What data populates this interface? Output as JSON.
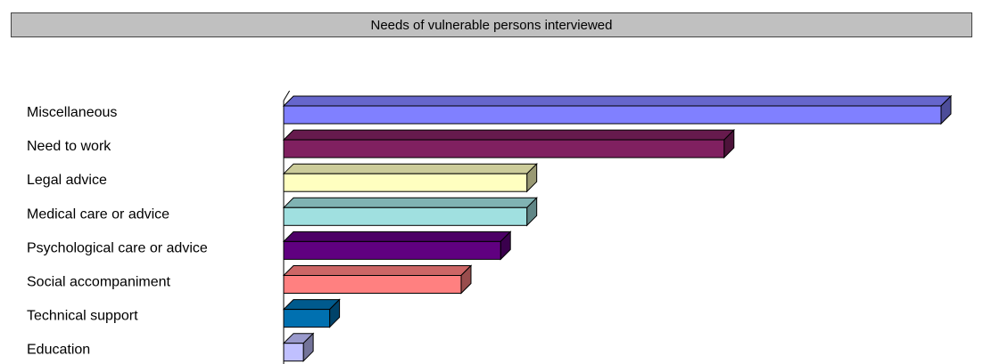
{
  "chart_data": {
    "type": "bar",
    "orientation": "horizontal",
    "title": "Needs of vulnerable persons interviewed",
    "categories": [
      "Miscellaneous",
      "Need to work",
      "Legal advice",
      "Medical care or advice",
      "Psychological care or advice",
      "Social accompaniment",
      "Technical support",
      "Education"
    ],
    "values": [
      100,
      67,
      37,
      37,
      33,
      27,
      7,
      3
    ],
    "colors": [
      "#8080ff",
      "#802060",
      "#ffffc0",
      "#a0e0e0",
      "#600080",
      "#ff8080",
      "#0070b0",
      "#c0c0ff"
    ],
    "xlim": [
      0,
      100
    ],
    "grid": false,
    "legend": "none"
  }
}
